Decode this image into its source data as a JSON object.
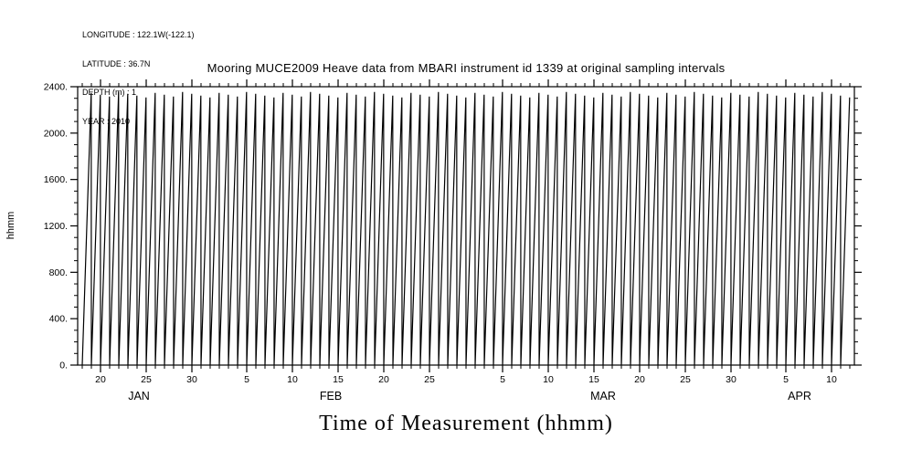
{
  "header": {
    "lines": [
      "LONGITUDE : 122.1W(-122.1)",
      "LATITUDE : 36.7N",
      "DEPTH (m) : 1",
      "YEAR : 2010"
    ]
  },
  "title": "Mooring MUCE2009 Heave data from MBARI instrument id 1339 at original sampling intervals",
  "x_axis_title": "Time of Measurement (hhmm)",
  "y_axis_label": "hhmm",
  "chart_data": {
    "type": "line",
    "title": "Mooring MUCE2009 Heave data from MBARI instrument id 1339 at original sampling intervals",
    "xlabel": "Time of Measurement (hhmm)",
    "ylabel": "hhmm",
    "year": 2010,
    "ylim": [
      0,
      2400
    ],
    "yticks_major": [
      0,
      400,
      800,
      1200,
      1600,
      2000,
      2400
    ],
    "ytick_labels": [
      "0.",
      "400.",
      "800.",
      "1200.",
      "1600.",
      "2000.",
      "2400."
    ],
    "y_minor_step": 100,
    "x_unit": "day_of_year",
    "x_day_start": 17.5,
    "x_day_end": 102.5,
    "x_minor_step_days": 1,
    "x_major_ticks": [
      {
        "day": 20,
        "label": "20"
      },
      {
        "day": 25,
        "label": "25"
      },
      {
        "day": 30,
        "label": "30"
      },
      {
        "day": 36,
        "label": "5"
      },
      {
        "day": 41,
        "label": "10"
      },
      {
        "day": 46,
        "label": "15"
      },
      {
        "day": 51,
        "label": "20"
      },
      {
        "day": 56,
        "label": "25"
      },
      {
        "day": 64,
        "label": "5"
      },
      {
        "day": 69,
        "label": "10"
      },
      {
        "day": 74,
        "label": "15"
      },
      {
        "day": 79,
        "label": "20"
      },
      {
        "day": 84,
        "label": "25"
      },
      {
        "day": 89,
        "label": "30"
      },
      {
        "day": 95,
        "label": "5"
      },
      {
        "day": 100,
        "label": "10"
      }
    ],
    "months": [
      {
        "label": "JAN",
        "day": 24.2
      },
      {
        "label": "FEB",
        "day": 45.2
      },
      {
        "label": "MAR",
        "day": 75.0
      },
      {
        "label": "APR",
        "day": 96.5
      }
    ],
    "series": [
      {
        "name": "time-of-measurement-sawtooth",
        "description": "Each day the measurement time-of-day ramps from 0000 to ~2355 (hhmm), producing one near-vertical rising line per day followed by a vertical drop back to 0",
        "first_day": 18,
        "last_day": 102,
        "daily_min_hhmm": 0,
        "daily_max_hhmm": 2355,
        "top_variation_hhmm": 55
      }
    ],
    "grid": false,
    "legend": "none",
    "line_color": "#000000",
    "frame_color": "#000000",
    "background_color": "#ffffff"
  }
}
